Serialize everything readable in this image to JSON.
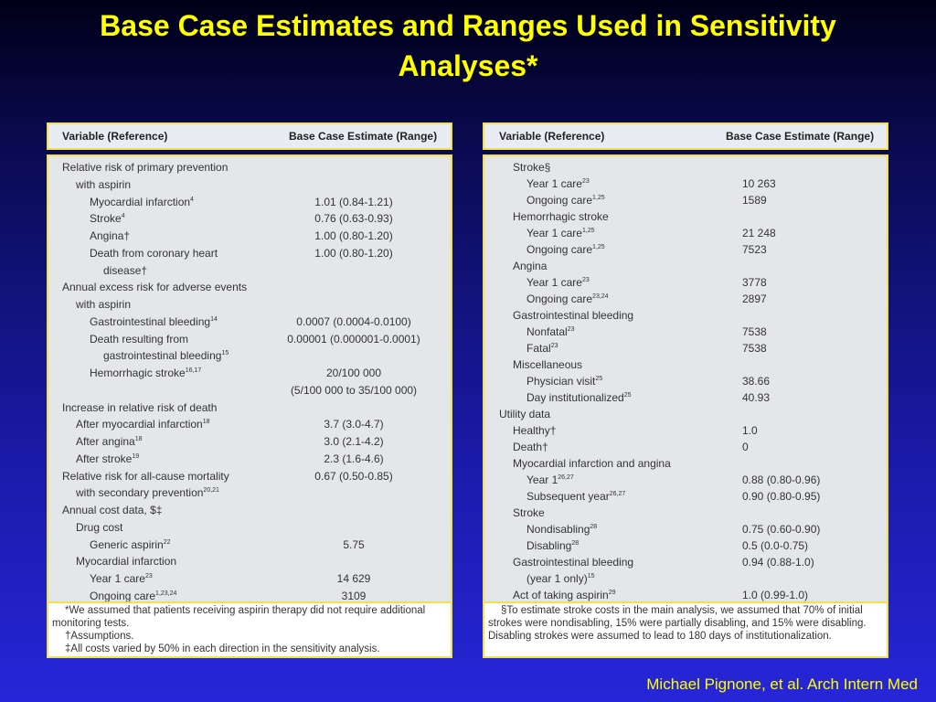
{
  "title": "Base Case Estimates and Ranges Used in Sensitivity Analyses*",
  "tables": [
    {
      "header": [
        "Variable (Reference)",
        "Base Case Estimate (Range)"
      ],
      "rows": [
        {
          "label": "Relative risk of primary prevention"
        },
        {
          "label": "with aspirin"
        },
        {
          "label": "Myocardial infarction",
          "sup": "4",
          "value": "1.01 (0.84-1.21)"
        },
        {
          "label": "Stroke",
          "sup": "4",
          "value": "0.76 (0.63-0.93)"
        },
        {
          "label": "Angina†",
          "value": "1.00 (0.80-1.20)"
        },
        {
          "label": "Death from coronary heart",
          "value": "1.00 (0.80-1.20)"
        },
        {
          "label": "disease†"
        },
        {
          "label": "Annual excess risk for adverse events"
        },
        {
          "label": "with aspirin"
        },
        {
          "label": "Gastrointestinal bleeding",
          "sup": "14",
          "value": "0.0007 (0.0004-0.0100)"
        },
        {
          "label": "Death resulting from",
          "value": "0.00001 (0.000001-0.0001)"
        },
        {
          "label": "gastrointestinal bleeding",
          "sup": "15"
        },
        {
          "label": "Hemorrhagic stroke",
          "sup": "16,17",
          "value": "20/100 000"
        },
        {
          "value": "(5/100 000 to 35/100 000)"
        },
        {
          "label": "Increase in relative risk of death"
        },
        {
          "label": "After myocardial infarction",
          "sup": "18",
          "value": "3.7 (3.0-4.7)"
        },
        {
          "label": "After angina",
          "sup": "18",
          "value": "3.0 (2.1-4.2)"
        },
        {
          "label": "After stroke",
          "sup": "19",
          "value": "2.3 (1.6-4.6)"
        },
        {
          "label": "Relative risk for all-cause mortality",
          "value": "0.67 (0.50-0.85)"
        },
        {
          "label": "with secondary prevention",
          "sup": "20,21"
        },
        {
          "label": "Annual cost data, $‡"
        },
        {
          "label": "Drug cost"
        },
        {
          "label": "Generic aspirin",
          "sup": "22",
          "value": "5.75"
        },
        {
          "label": "Myocardial infarction"
        },
        {
          "label": "Year 1 care",
          "sup": "23",
          "value": "14 629"
        },
        {
          "label": "Ongoing care",
          "sup": "1,23,24",
          "value": "3109"
        }
      ],
      "footnotes": [
        "*We assumed that patients receiving aspirin therapy did not require additional monitoring tests.",
        "†Assumptions.",
        "‡All costs varied by 50% in each direction in the sensitivity analysis."
      ]
    },
    {
      "header": [
        "Variable (Reference)",
        "Base Case Estimate (Range)"
      ],
      "rows": [
        {
          "label": "Stroke§"
        },
        {
          "label": "Year 1 care",
          "sup": "23",
          "value": "10 263"
        },
        {
          "label": "Ongoing care",
          "sup": "1,25",
          "value": "1589"
        },
        {
          "label": "Hemorrhagic stroke"
        },
        {
          "label": "Year 1 care",
          "sup": "1,25",
          "value": "21 248"
        },
        {
          "label": "Ongoing care",
          "sup": "1,25",
          "value": "7523"
        },
        {
          "label": "Angina"
        },
        {
          "label": "Year 1 care",
          "sup": "23",
          "value": "3778"
        },
        {
          "label": "Ongoing care",
          "sup": "23,24",
          "value": "2897"
        },
        {
          "label": "Gastrointestinal bleeding"
        },
        {
          "label": "Nonfatal",
          "sup": "23",
          "value": "7538"
        },
        {
          "label": "Fatal",
          "sup": "23",
          "value": "7538"
        },
        {
          "label": "Miscellaneous"
        },
        {
          "label": "Physician visit",
          "sup": "25",
          "value": "38.66"
        },
        {
          "label": "Day institutionalized",
          "sup": "25",
          "value": "40.93"
        },
        {
          "label": "Utility data"
        },
        {
          "label": "Healthy†",
          "value": "1.0"
        },
        {
          "label": "Death†",
          "value": "0"
        },
        {
          "label": "Myocardial infarction and angina"
        },
        {
          "label": "Year 1",
          "sup": "26,27",
          "value": "0.88 (0.80-0.96)"
        },
        {
          "label": "Subsequent year",
          "sup": "26,27",
          "value": "0.90 (0.80-0.95)"
        },
        {
          "label": "Stroke"
        },
        {
          "label": "Nondisabling",
          "sup": "28",
          "value": "0.75 (0.60-0.90)"
        },
        {
          "label": "Disabling",
          "sup": "28",
          "value": "0.5 (0.0-0.75)"
        },
        {
          "label": "Gastrointestinal bleeding",
          "value": "0.94 (0.88-1.0)"
        },
        {
          "label": "(year 1 only)",
          "sup": "15"
        },
        {
          "label": "Act of taking aspirin",
          "sup": "29",
          "value": "1.0 (0.99-1.0)"
        }
      ],
      "footnotes": [
        "§To estimate stroke costs in the main analysis, we assumed that 70% of initial strokes were nondisabling, 15% were partially disabling, and 15% were disabling. Disabling strokes were assumed to lead to 180 days of institutionalization."
      ]
    }
  ],
  "citation": "Michael Pignone, et al. Arch Intern Med"
}
